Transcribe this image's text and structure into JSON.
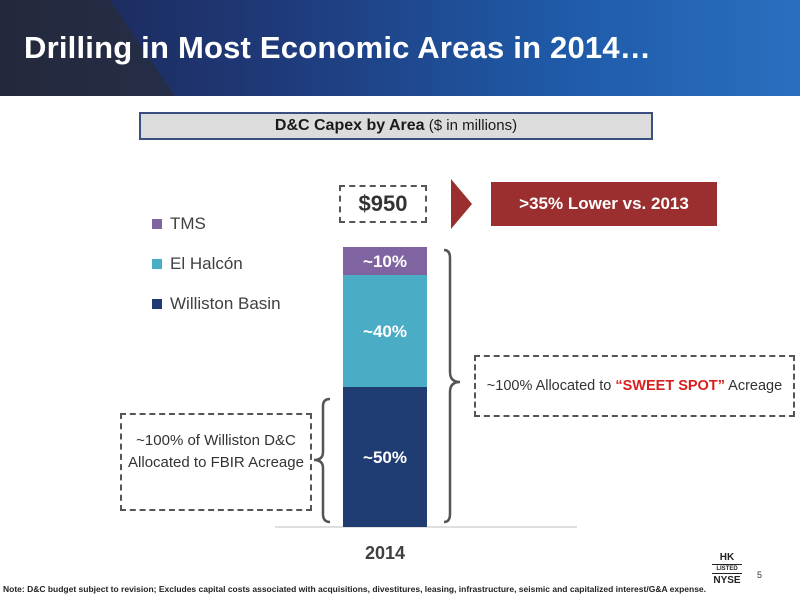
{
  "slide": {
    "title": "Drilling in Most Economic Areas in 2014…",
    "subtitle_bold": "D&C Capex by Area",
    "subtitle_rest": " ($ in millions)",
    "total_label": "$950",
    "callout": ">35% Lower vs. 2013",
    "left_note": "~100% of Williston D&C Allocated to FBIR Acreage",
    "right_note_pre": "~100% Allocated to ",
    "right_note_highlight": "“SWEET SPOT”",
    "right_note_post": " Acreage",
    "footnote": "Note: D&C budget subject to revision; Excludes capital costs associated with acquisitions, divestitures, leasing, infrastructure, seismic and capitalized interest/G&A expense.",
    "logo_top": "HK",
    "logo_mid": "LISTED",
    "logo_bottom": "NYSE",
    "page_number": "5"
  },
  "colors": {
    "williston": "#1f3d73",
    "el_halcon": "#4bacc6",
    "tms": "#8064a2",
    "callout": "#9b2e2e",
    "highlight": "#d91e1e"
  },
  "chart_data": {
    "type": "bar",
    "stacked": true,
    "categories": [
      "2014"
    ],
    "series": [
      {
        "name": "Williston Basin",
        "values": [
          50
        ],
        "label": "~50%",
        "color": "#1f3d73"
      },
      {
        "name": "El Halcón",
        "values": [
          40
        ],
        "label": "~40%",
        "color": "#4bacc6"
      },
      {
        "name": "TMS",
        "values": [
          10
        ],
        "label": "~10%",
        "color": "#8064a2"
      }
    ],
    "total": 950,
    "ylim": [
      0,
      100
    ],
    "legend_order": [
      "TMS",
      "El Halcón",
      "Williston Basin"
    ],
    "legend_position": "left"
  }
}
